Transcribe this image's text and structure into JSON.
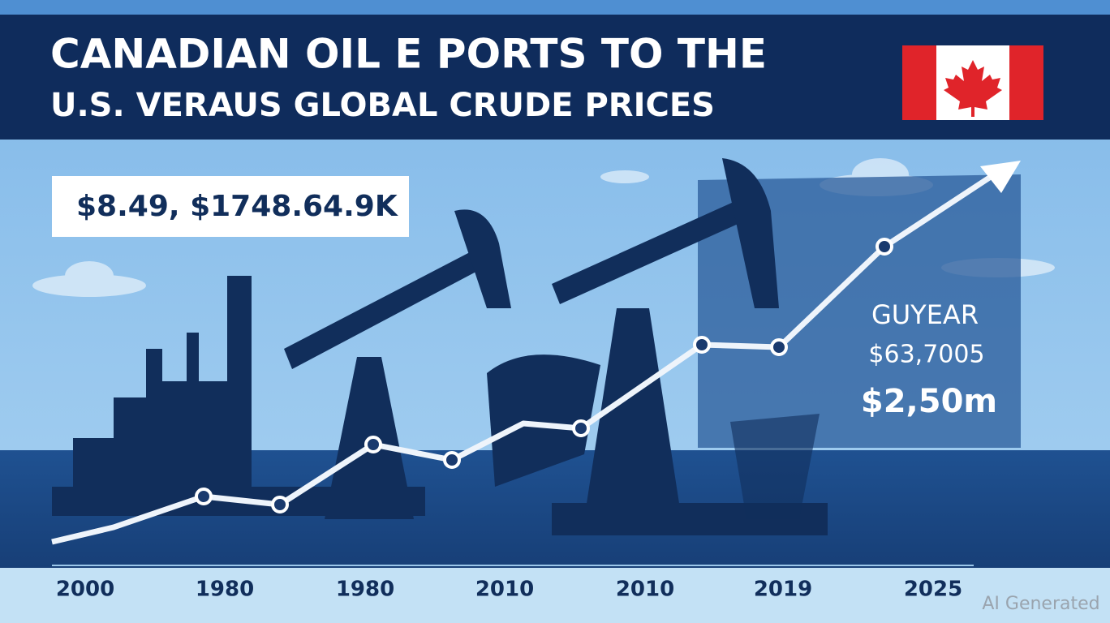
{
  "header": {
    "title_lines": [
      "CANADIAN OIL E PORTS TO THE",
      "U.S. VERAUS GLOBAL CRUDE PRICES"
    ]
  },
  "stat_box": {
    "text": "$8.49, $1748.64.9K"
  },
  "side_panel": {
    "lines": [
      "GUYEAR",
      "$63,7005",
      "$2,50m"
    ]
  },
  "x_labels": [
    "2000",
    "1980",
    "1980",
    "2010",
    "2010",
    "2019",
    "2025"
  ],
  "watermark": "AI Generated"
}
